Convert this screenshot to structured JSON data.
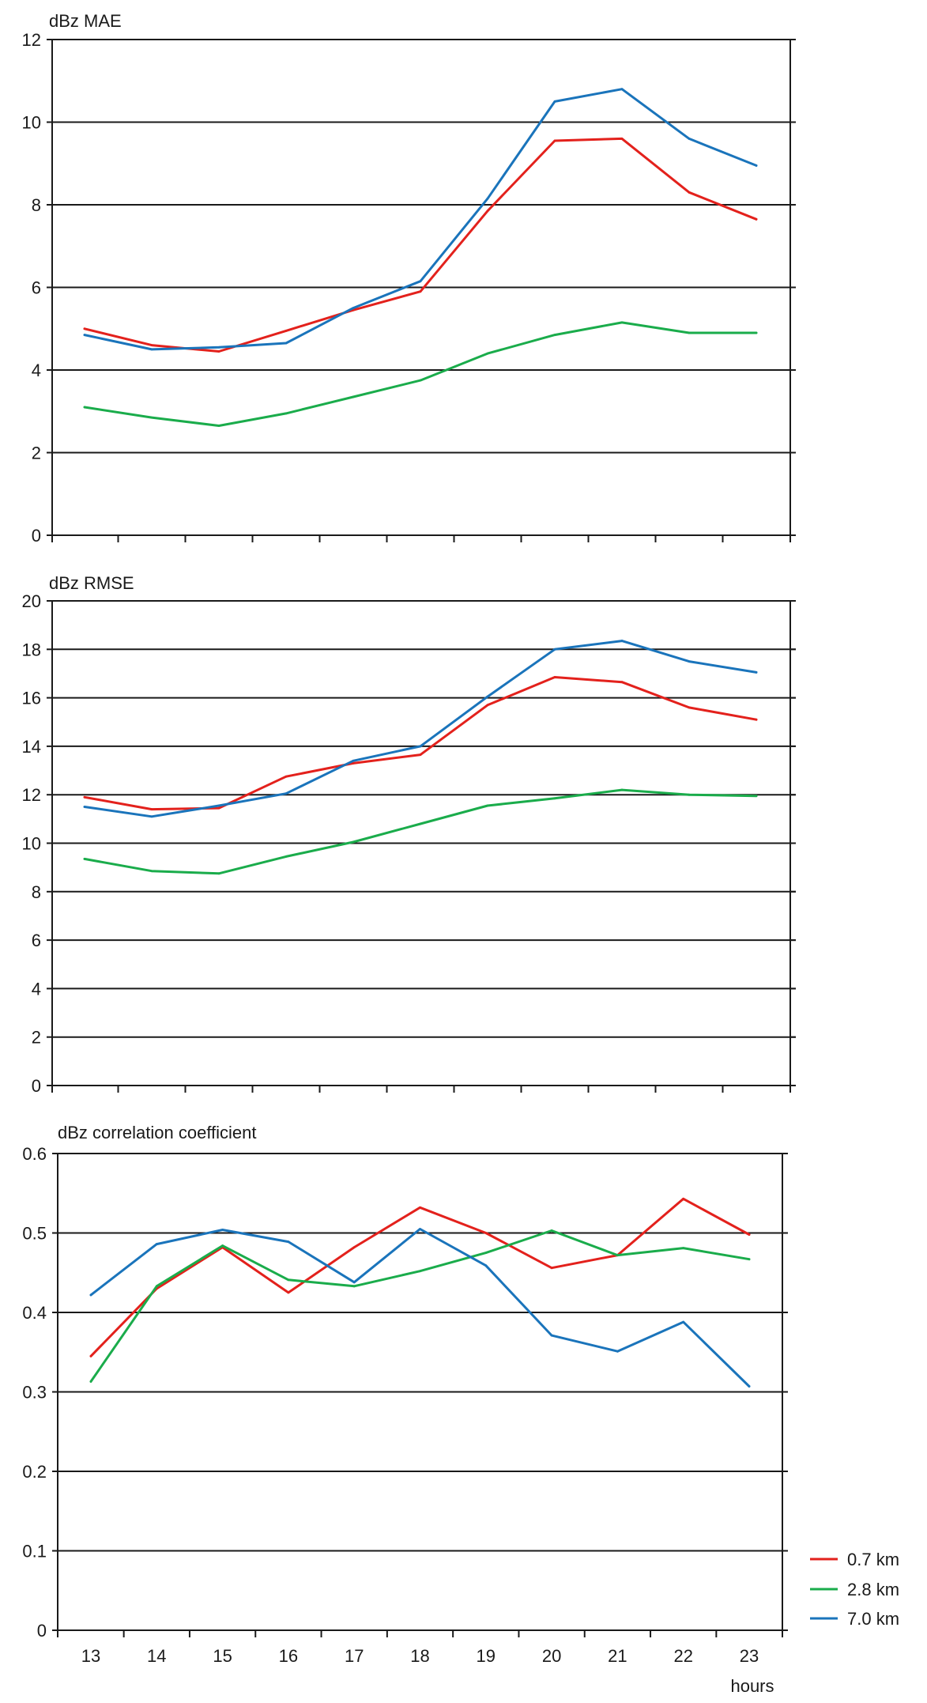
{
  "chart_data": [
    {
      "type": "line",
      "ylabel": "dBz MAE",
      "ylim": [
        0,
        12
      ],
      "yticks": [
        0,
        2,
        4,
        6,
        8,
        10,
        12
      ],
      "x": [
        13,
        14,
        15,
        16,
        17,
        18,
        19,
        20,
        21,
        22,
        23
      ],
      "grid": true,
      "series": [
        {
          "name": "0.7 km",
          "color": "#e3211c",
          "values": [
            5.0,
            4.6,
            4.45,
            4.95,
            5.45,
            5.9,
            7.85,
            9.55,
            9.6,
            8.3,
            7.65
          ]
        },
        {
          "name": "2.8 km",
          "color": "#1aac4b",
          "values": [
            3.1,
            2.85,
            2.65,
            2.95,
            3.35,
            3.75,
            4.4,
            4.85,
            5.15,
            4.9,
            4.9
          ]
        },
        {
          "name": "7.0 km",
          "color": "#1a74bb",
          "values": [
            4.85,
            4.5,
            4.55,
            4.65,
            5.5,
            6.15,
            8.15,
            10.5,
            10.8,
            9.6,
            8.95
          ]
        }
      ]
    },
    {
      "type": "line",
      "ylabel": "dBz RMSE",
      "ylim": [
        0,
        20
      ],
      "yticks": [
        0,
        2,
        4,
        6,
        8,
        10,
        12,
        14,
        16,
        18,
        20
      ],
      "x": [
        13,
        14,
        15,
        16,
        17,
        18,
        19,
        20,
        21,
        22,
        23
      ],
      "grid": true,
      "series": [
        {
          "name": "0.7 km",
          "color": "#e3211c",
          "values": [
            11.9,
            11.4,
            11.45,
            12.75,
            13.3,
            13.65,
            15.7,
            16.85,
            16.65,
            15.6,
            15.1
          ]
        },
        {
          "name": "2.8 km",
          "color": "#1aac4b",
          "values": [
            9.35,
            8.85,
            8.75,
            9.45,
            10.05,
            10.8,
            11.55,
            11.85,
            12.2,
            12.0,
            11.95
          ]
        },
        {
          "name": "7.0 km",
          "color": "#1a74bb",
          "values": [
            11.5,
            11.1,
            11.55,
            12.05,
            13.4,
            14.0,
            16.05,
            18.0,
            18.35,
            17.5,
            17.05
          ]
        }
      ]
    },
    {
      "type": "line",
      "ylabel": "dBz correlation coefficient",
      "ylim": [
        0,
        0.6
      ],
      "yticks": [
        0,
        0.1,
        0.2,
        0.3,
        0.4,
        0.5,
        0.6
      ],
      "ytick_labels": [
        "0",
        "0.1",
        "0.2",
        "0.3",
        "0.4",
        "0.5",
        "0.6"
      ],
      "x": [
        13,
        14,
        15,
        16,
        17,
        18,
        19,
        20,
        21,
        22,
        23
      ],
      "xtick_labels": [
        "13",
        "14",
        "15",
        "16",
        "17",
        "18",
        "19",
        "20",
        "21",
        "22",
        "23"
      ],
      "xlabel": "hours",
      "grid": true,
      "series": [
        {
          "name": "0.7 km",
          "color": "#e3211c",
          "values": [
            0.345,
            0.43,
            0.482,
            0.425,
            0.482,
            0.532,
            0.5,
            0.456,
            0.472,
            0.543,
            0.498
          ]
        },
        {
          "name": "2.8 km",
          "color": "#1aac4b",
          "values": [
            0.313,
            0.433,
            0.484,
            0.441,
            0.433,
            0.452,
            0.475,
            0.503,
            0.472,
            0.481,
            0.467
          ]
        },
        {
          "name": "7.0 km",
          "color": "#1a74bb",
          "values": [
            0.422,
            0.486,
            0.504,
            0.489,
            0.438,
            0.505,
            0.459,
            0.371,
            0.351,
            0.388,
            0.307
          ]
        }
      ]
    }
  ],
  "legend": {
    "placement": "bottom-right",
    "items": [
      {
        "label": "0.7 km",
        "color": "#e3211c"
      },
      {
        "label": "2.8 km",
        "color": "#1aac4b"
      },
      {
        "label": "7.0 km",
        "color": "#1a74bb"
      }
    ]
  }
}
